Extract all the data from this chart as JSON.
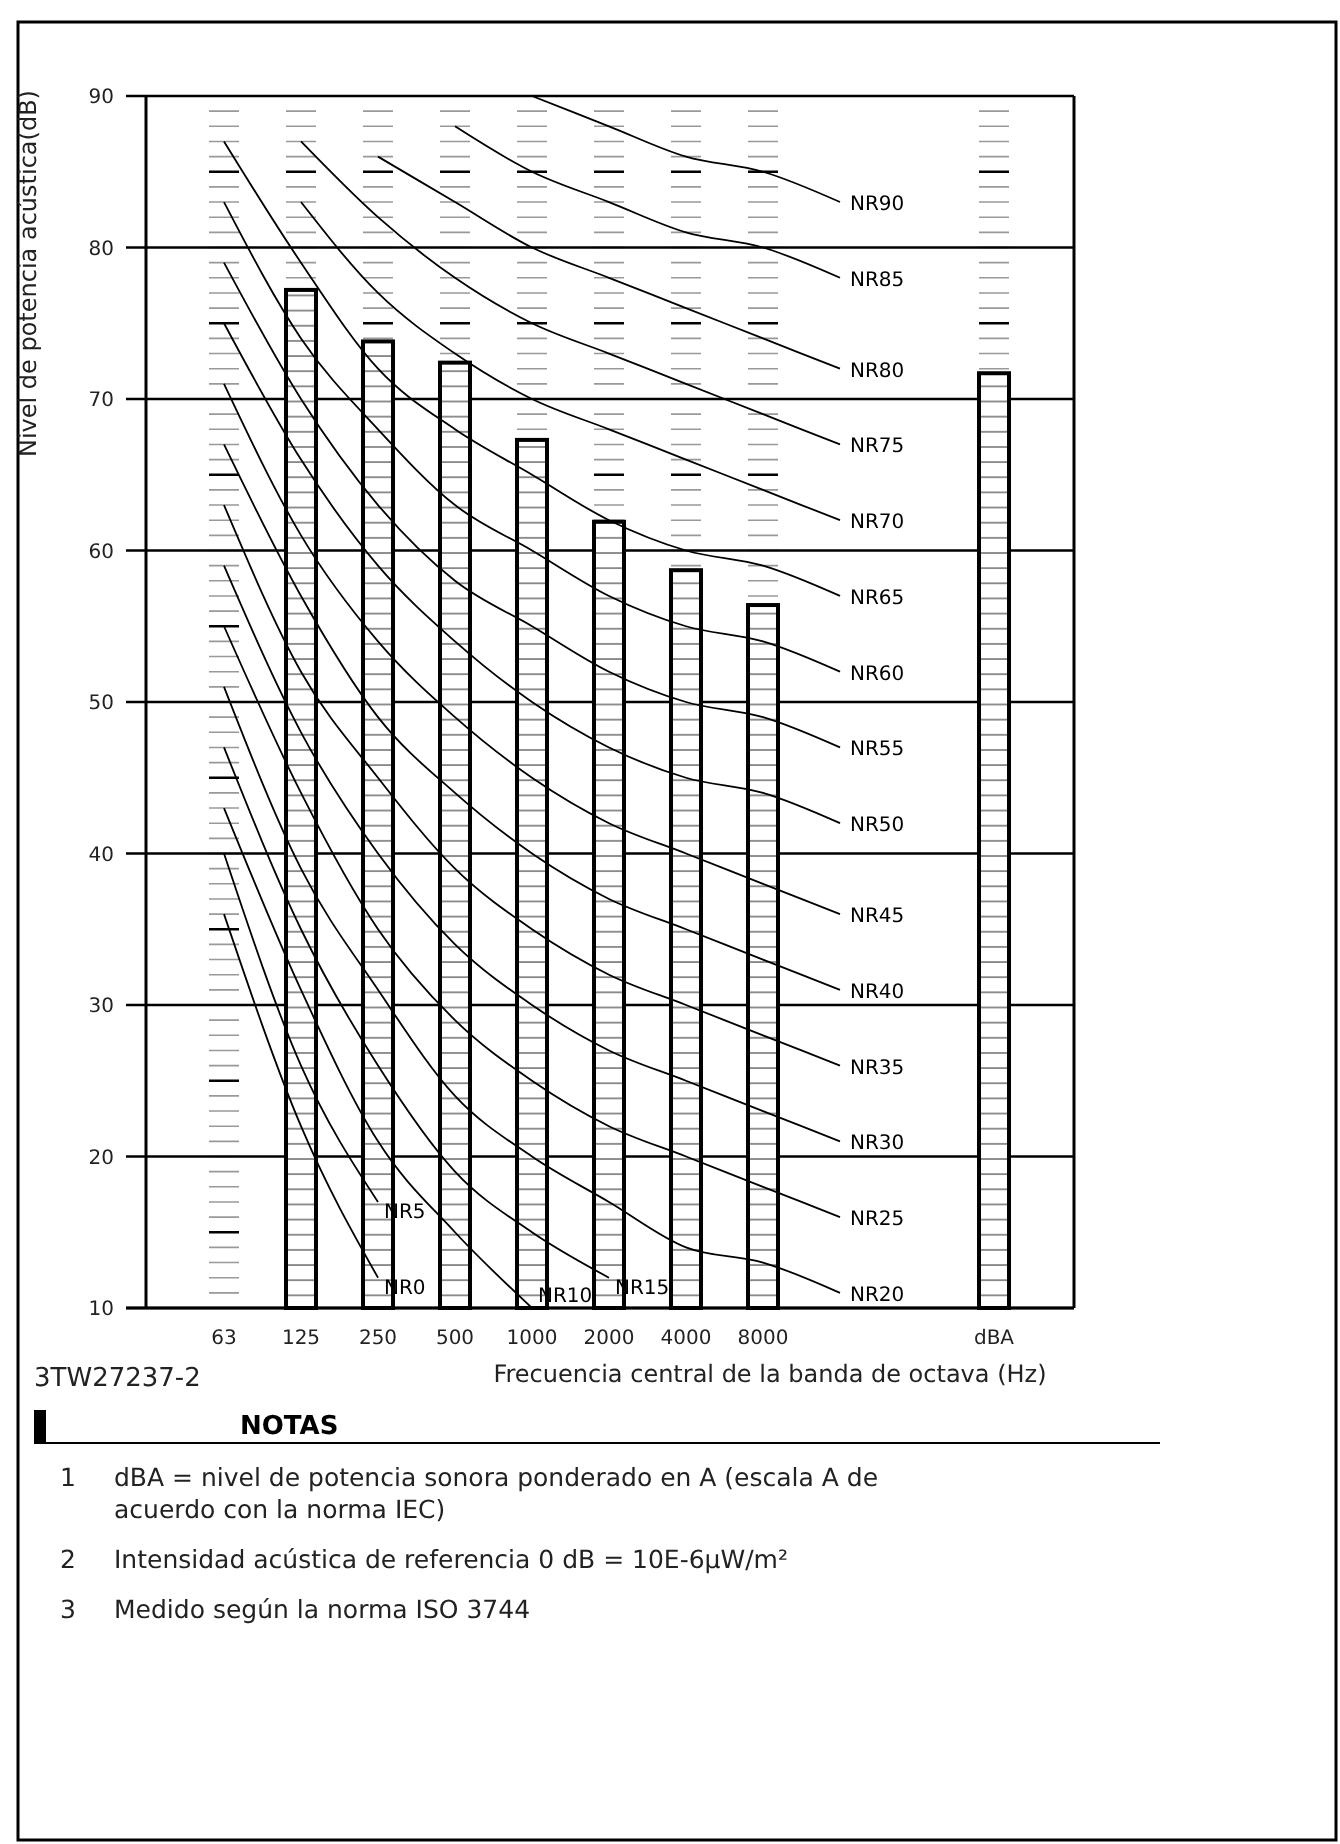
{
  "chart_data": {
    "type": "bar",
    "ylabel": "Nivel de potencia acústica(dB)",
    "xlabel": "Frecuencia central de la banda de octava (Hz)",
    "categories": [
      "63",
      "125",
      "250",
      "500",
      "1000",
      "2000",
      "4000",
      "8000",
      null,
      null,
      "dBA"
    ],
    "ylim": [
      10,
      90
    ],
    "yticks": [
      10,
      20,
      30,
      40,
      50,
      60,
      70,
      80,
      90
    ],
    "grid": "y",
    "legend": false,
    "series": [
      {
        "color": "#000000",
        "values": [
          null,
          77.2,
          73.8,
          72.4,
          67.3,
          61.9,
          58.7,
          56.4,
          null,
          null,
          71.7
        ]
      },
      {
        "type": "line",
        "name": "NR0",
        "color": "#000000",
        "values": [
          36,
          22,
          12,
          null,
          null,
          null,
          null,
          null,
          null,
          null,
          null
        ]
      },
      {
        "type": "line",
        "name": "NR5",
        "color": "#000000",
        "values": [
          40,
          26,
          17,
          null,
          null,
          null,
          null,
          null,
          null,
          null,
          null
        ]
      },
      {
        "type": "line",
        "name": "NR10",
        "color": "#000000",
        "values": [
          43,
          31,
          21,
          15,
          10,
          null,
          null,
          null,
          null,
          null,
          null
        ]
      },
      {
        "type": "line",
        "name": "NR15",
        "color": "#000000",
        "values": [
          47,
          35,
          26,
          19,
          15,
          12,
          null,
          null,
          null,
          null,
          null
        ]
      },
      {
        "type": "line",
        "name": "NR20",
        "color": "#000000",
        "values": [
          51,
          39,
          31,
          24,
          20,
          17,
          14,
          13,
          11,
          null,
          null
        ]
      },
      {
        "type": "line",
        "name": "NR25",
        "color": "#000000",
        "values": [
          55,
          44,
          35,
          29,
          25,
          22,
          20,
          18,
          16,
          null,
          null
        ]
      },
      {
        "type": "line",
        "name": "NR30",
        "color": "#000000",
        "values": [
          59,
          48,
          40,
          34,
          30,
          27,
          25,
          23,
          21,
          null,
          null
        ]
      },
      {
        "type": "line",
        "name": "NR35",
        "color": "#000000",
        "values": [
          63,
          52,
          45,
          39,
          35,
          32,
          30,
          28,
          26,
          null,
          null
        ]
      },
      {
        "type": "line",
        "name": "NR40",
        "color": "#000000",
        "values": [
          67,
          57,
          49,
          44,
          40,
          37,
          35,
          33,
          31,
          null,
          null
        ]
      },
      {
        "type": "line",
        "name": "NR45",
        "color": "#000000",
        "values": [
          71,
          61,
          54,
          49,
          45,
          42,
          40,
          38,
          36,
          null,
          null
        ]
      },
      {
        "type": "line",
        "name": "NR50",
        "color": "#000000",
        "values": [
          75,
          66,
          59,
          54,
          50,
          47,
          45,
          44,
          42,
          null,
          null
        ]
      },
      {
        "type": "line",
        "name": "NR55",
        "color": "#000000",
        "values": [
          79,
          70,
          63,
          58,
          55,
          52,
          50,
          49,
          47,
          null,
          null
        ]
      },
      {
        "type": "line",
        "name": "NR60",
        "color": "#000000",
        "values": [
          83,
          74,
          68,
          63,
          60,
          57,
          55,
          54,
          52,
          null,
          null
        ]
      },
      {
        "type": "line",
        "name": "NR65",
        "color": "#000000",
        "values": [
          87,
          79,
          72,
          68,
          65,
          62,
          60,
          59,
          57,
          null,
          null
        ]
      },
      {
        "type": "line",
        "name": "NR70",
        "color": "#000000",
        "values": [
          null,
          83,
          77,
          73,
          70,
          68,
          66,
          64,
          62,
          null,
          null
        ]
      },
      {
        "type": "line",
        "name": "NR75",
        "color": "#000000",
        "values": [
          null,
          87,
          82,
          78,
          75,
          73,
          71,
          69,
          67,
          null,
          null
        ]
      },
      {
        "type": "line",
        "name": "NR80",
        "color": "#000000",
        "values": [
          null,
          null,
          86,
          83,
          80,
          78,
          76,
          74,
          72,
          null,
          null
        ]
      },
      {
        "type": "line",
        "name": "NR85",
        "color": "#000000",
        "values": [
          null,
          null,
          null,
          88,
          85,
          83,
          81,
          80,
          78,
          null,
          null
        ]
      },
      {
        "type": "line",
        "name": "NR90",
        "color": "#000000",
        "values": [
          null,
          null,
          null,
          null,
          90,
          88,
          86,
          85,
          83,
          null,
          null
        ]
      }
    ],
    "annotations": [
      "3TW27237-2",
      "NOTAS",
      "1 dBA = nivel de potencia sonora ponderado en A (escala A de acuerdo con la norma IEC)",
      "2 Intensidad acústica de referencia 0 dB = 10E-6μW/m²",
      "3 Medido según la norma ISO 3744"
    ]
  }
}
